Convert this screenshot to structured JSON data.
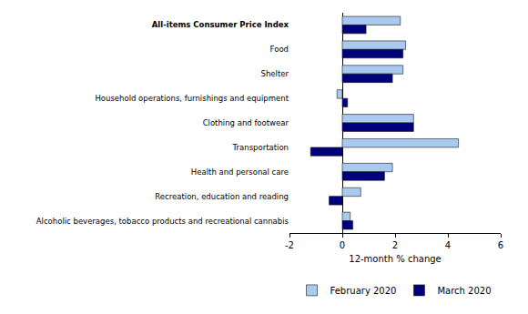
{
  "chart_data": {
    "type": "bar",
    "orientation": "horizontal",
    "categories": [
      "All-items Consumer Price Index",
      "Food",
      "Shelter",
      "Household operations, furnishings and equipment",
      "Clothing and footwear",
      "Transportation",
      "Health and personal care",
      "Recreation, education and reading",
      "Alcoholic beverages, tobacco products and recreational cannabis"
    ],
    "series": [
      {
        "name": "February 2020",
        "color": "#a9c9ee",
        "values": [
          2.2,
          2.4,
          2.3,
          -0.2,
          2.7,
          4.4,
          1.9,
          0.7,
          0.3
        ]
      },
      {
        "name": "March 2020",
        "color": "#00007a",
        "values": [
          0.9,
          2.3,
          1.9,
          0.2,
          2.7,
          -1.2,
          1.6,
          -0.5,
          0.4
        ]
      }
    ],
    "x_label": "12-month % change",
    "xlim": [
      -2,
      6
    ],
    "xticks": [
      -2,
      0,
      2,
      4,
      6
    ],
    "grid": false,
    "legend": "bottom"
  }
}
